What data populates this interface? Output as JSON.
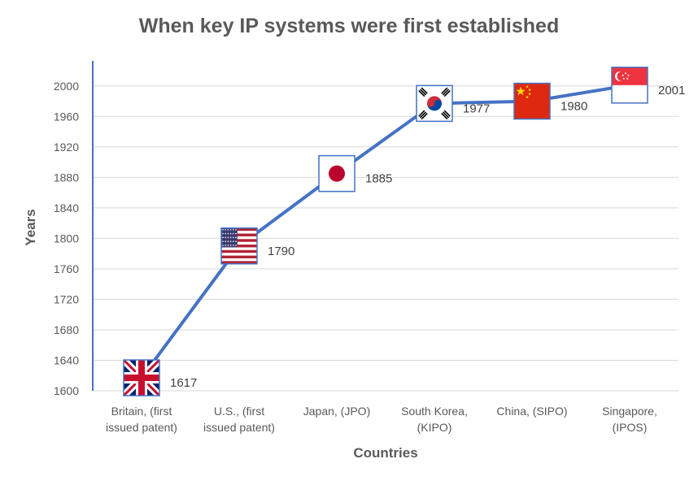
{
  "chart_data": {
    "type": "line",
    "title": "When key IP systems were first established",
    "xlabel": "Countries",
    "ylabel": "Years",
    "ylim": [
      1600,
      2020
    ],
    "yticks": [
      1600,
      1640,
      1680,
      1720,
      1760,
      1800,
      1840,
      1880,
      1920,
      1960,
      2000
    ],
    "grid": true,
    "line_color": "#4472C4",
    "categories": [
      [
        "Britain, (first",
        "issued patent)"
      ],
      [
        "U.S., (first",
        "issued patent)"
      ],
      [
        "Japan, (JPO)"
      ],
      [
        "South Korea,",
        "(KIPO)"
      ],
      [
        "China, (SIPO)"
      ],
      [
        "Singapore,",
        "(IPOS)"
      ]
    ],
    "series": [
      {
        "values": [
          1617,
          1790,
          1885,
          1977,
          1980,
          2001
        ],
        "data_labels": [
          "1617",
          "1790",
          "1885",
          "1977",
          "1980",
          "2001"
        ],
        "markers": [
          "uk-flag-icon",
          "us-flag-icon",
          "japan-flag-icon",
          "south-korea-flag-icon",
          "china-flag-icon",
          "singapore-flag-icon"
        ]
      }
    ]
  }
}
